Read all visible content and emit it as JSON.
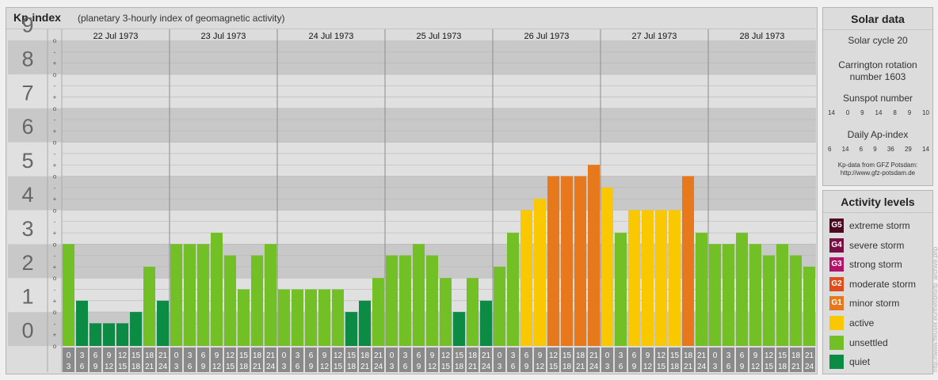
{
  "header": {
    "title": "Kp-index",
    "subtitle": "(planetary 3-hourly index of geomagnetic activity)"
  },
  "chart_data": {
    "type": "bar",
    "y_major_labels": [
      "0",
      "1",
      "2",
      "3",
      "4",
      "5",
      "6",
      "7",
      "8",
      "9"
    ],
    "y_minor_labels": [
      "o",
      "+",
      "-",
      "o",
      "+",
      "-",
      "o",
      "+",
      "-",
      "o",
      "+",
      "-",
      "o",
      "+",
      "-",
      "o",
      "+",
      "-",
      "o",
      "+",
      "-",
      "o",
      "+",
      "-",
      "o",
      "+",
      "-",
      "o"
    ],
    "ylim": [
      0,
      9
    ],
    "days": [
      "22 Jul 1973",
      "23 Jul 1973",
      "24 Jul 1973",
      "25 Jul 1973",
      "26 Jul 1973",
      "27 Jul 1973",
      "28 Jul 1973"
    ],
    "hour_bins": [
      [
        "0",
        "3"
      ],
      [
        "3",
        "6"
      ],
      [
        "6",
        "9"
      ],
      [
        "9",
        "12"
      ],
      [
        "12",
        "15"
      ],
      [
        "15",
        "18"
      ],
      [
        "18",
        "21"
      ],
      [
        "21",
        "24"
      ]
    ],
    "values": [
      3.0,
      1.333,
      0.667,
      0.667,
      0.667,
      1.0,
      2.333,
      1.333,
      3.0,
      3.0,
      3.0,
      3.333,
      2.667,
      1.667,
      2.667,
      3.0,
      1.667,
      1.667,
      1.667,
      1.667,
      1.667,
      1.0,
      1.333,
      2.0,
      2.667,
      2.667,
      3.0,
      2.667,
      2.0,
      1.0,
      2.0,
      1.333,
      2.333,
      3.333,
      4.0,
      4.333,
      5.0,
      5.0,
      5.0,
      5.333,
      4.667,
      3.333,
      4.0,
      4.0,
      4.0,
      4.0,
      5.0,
      3.333,
      3.0,
      3.0,
      3.333,
      3.0,
      2.667,
      3.0,
      2.667,
      2.333
    ]
  },
  "levels": {
    "quiet": "#0c8b45",
    "unsettled": "#73c026",
    "active": "#fac800",
    "minor": "#e8781c"
  },
  "solar": {
    "title": "Solar data",
    "cycle": "Solar cycle 20",
    "carrington_1": "Carrington rotation",
    "carrington_2": "number 1603",
    "sunspot_label": "Sunspot number",
    "sunspot_values": [
      "14",
      "0",
      "9",
      "14",
      "8",
      "9",
      "10"
    ],
    "ap_label": "Daily Ap-index",
    "ap_values": [
      "6",
      "14",
      "6",
      "9",
      "36",
      "29",
      "14"
    ],
    "credit_1": "Kp-data from GFZ Potsdam:",
    "credit_2": "http://www.gfz-potsdam.de"
  },
  "activity": {
    "title": "Activity levels",
    "items": [
      {
        "code": "G5",
        "label": "extreme storm",
        "color": "#4b0a22"
      },
      {
        "code": "G4",
        "label": "severe storm",
        "color": "#7a0e47"
      },
      {
        "code": "G3",
        "label": "strong storm",
        "color": "#b21268"
      },
      {
        "code": "G2",
        "label": "moderate storm",
        "color": "#df4d1b"
      },
      {
        "code": "G1",
        "label": "minor storm",
        "color": "#e8781c"
      },
      {
        "code": "",
        "label": "active",
        "color": "#fac800"
      },
      {
        "code": "",
        "label": "unsettled",
        "color": "#73c026"
      },
      {
        "code": "",
        "label": "quiet",
        "color": "#0c8b45"
      }
    ]
  },
  "watermark": "http://www.ffeuser.eu/fnet/pro/fp_archive.php"
}
